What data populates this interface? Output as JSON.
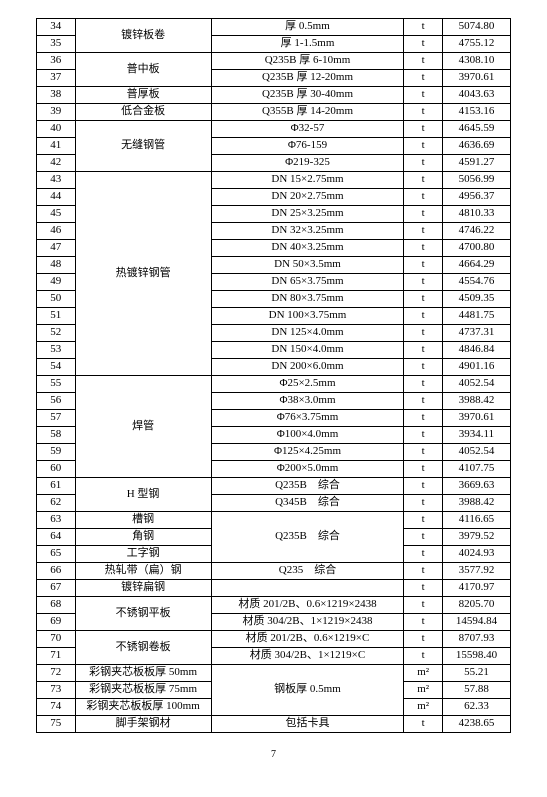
{
  "page": {
    "number": "7"
  },
  "rows": [
    {
      "seq": "34",
      "name": "镀锌板卷",
      "name_rowspan": 2,
      "spec": "厚 0.5mm",
      "unit": "t",
      "price": "5074.80"
    },
    {
      "seq": "35",
      "spec": "厚 1-1.5mm",
      "unit": "t",
      "price": "4755.12"
    },
    {
      "seq": "36",
      "name": "普中板",
      "name_rowspan": 2,
      "spec": "Q235B 厚 6-10mm",
      "unit": "t",
      "price": "4308.10"
    },
    {
      "seq": "37",
      "spec": "Q235B 厚 12-20mm",
      "unit": "t",
      "price": "3970.61"
    },
    {
      "seq": "38",
      "name": "普厚板",
      "name_rowspan": 1,
      "spec": "Q235B 厚 30-40mm",
      "unit": "t",
      "price": "4043.63"
    },
    {
      "seq": "39",
      "name": "低合金板",
      "name_rowspan": 1,
      "spec": "Q355B 厚 14-20mm",
      "unit": "t",
      "price": "4153.16"
    },
    {
      "seq": "40",
      "name": "无缝钢管",
      "name_rowspan": 3,
      "spec": "Φ32-57",
      "unit": "t",
      "price": "4645.59"
    },
    {
      "seq": "41",
      "spec": "Φ76-159",
      "unit": "t",
      "price": "4636.69"
    },
    {
      "seq": "42",
      "spec": "Φ219-325",
      "unit": "t",
      "price": "4591.27"
    },
    {
      "seq": "43",
      "name": "热镀锌钢管",
      "name_rowspan": 12,
      "spec": "DN 15×2.75mm",
      "unit": "t",
      "price": "5056.99"
    },
    {
      "seq": "44",
      "spec": "DN 20×2.75mm",
      "unit": "t",
      "price": "4956.37"
    },
    {
      "seq": "45",
      "spec": "DN 25×3.25mm",
      "unit": "t",
      "price": "4810.33"
    },
    {
      "seq": "46",
      "spec": "DN 32×3.25mm",
      "unit": "t",
      "price": "4746.22"
    },
    {
      "seq": "47",
      "spec": "DN 40×3.25mm",
      "unit": "t",
      "price": "4700.80"
    },
    {
      "seq": "48",
      "spec": "DN 50×3.5mm",
      "unit": "t",
      "price": "4664.29"
    },
    {
      "seq": "49",
      "spec": "DN 65×3.75mm",
      "unit": "t",
      "price": "4554.76"
    },
    {
      "seq": "50",
      "spec": "DN 80×3.75mm",
      "unit": "t",
      "price": "4509.35"
    },
    {
      "seq": "51",
      "spec": "DN 100×3.75mm",
      "unit": "t",
      "price": "4481.75"
    },
    {
      "seq": "52",
      "spec": "DN 125×4.0mm",
      "unit": "t",
      "price": "4737.31"
    },
    {
      "seq": "53",
      "spec": "DN 150×4.0mm",
      "unit": "t",
      "price": "4846.84"
    },
    {
      "seq": "54",
      "spec": "DN 200×6.0mm",
      "unit": "t",
      "price": "4901.16"
    },
    {
      "seq": "55",
      "name": "焊管",
      "name_rowspan": 6,
      "spec": "Φ25×2.5mm",
      "unit": "t",
      "price": "4052.54"
    },
    {
      "seq": "56",
      "spec": "Φ38×3.0mm",
      "unit": "t",
      "price": "3988.42"
    },
    {
      "seq": "57",
      "spec": "Φ76×3.75mm",
      "unit": "t",
      "price": "3970.61"
    },
    {
      "seq": "58",
      "spec": "Φ100×4.0mm",
      "unit": "t",
      "price": "3934.11"
    },
    {
      "seq": "59",
      "spec": "Φ125×4.25mm",
      "unit": "t",
      "price": "4052.54"
    },
    {
      "seq": "60",
      "spec": "Φ200×5.0mm",
      "unit": "t",
      "price": "4107.75"
    },
    {
      "seq": "61",
      "name": "H 型钢",
      "name_rowspan": 2,
      "spec": "Q235B　综合",
      "unit": "t",
      "price": "3669.63"
    },
    {
      "seq": "62",
      "spec": "Q345B　综合",
      "unit": "t",
      "price": "3988.42"
    },
    {
      "seq": "63",
      "name": "槽钢",
      "name_rowspan": 1,
      "spec": "Q235B　综合",
      "spec_rowspan": 3,
      "unit": "t",
      "price": "4116.65"
    },
    {
      "seq": "64",
      "name": "角钢",
      "name_rowspan": 1,
      "unit": "t",
      "price": "3979.52"
    },
    {
      "seq": "65",
      "name": "工字钢",
      "name_rowspan": 1,
      "unit": "t",
      "price": "4024.93"
    },
    {
      "seq": "66",
      "name": "热轧带（扁）钢",
      "name_rowspan": 1,
      "spec": "Q235　综合",
      "unit": "t",
      "price": "3577.92"
    },
    {
      "seq": "67",
      "name": "镀锌扁钢",
      "name_rowspan": 1,
      "spec": "",
      "unit": "t",
      "price": "4170.97"
    },
    {
      "seq": "68",
      "name": "不锈钢平板",
      "name_rowspan": 2,
      "spec": "材质 201/2B、0.6×1219×2438",
      "unit": "t",
      "price": "8205.70"
    },
    {
      "seq": "69",
      "spec": "材质 304/2B、1×1219×2438",
      "unit": "t",
      "price": "14594.84"
    },
    {
      "seq": "70",
      "name": "不锈钢卷板",
      "name_rowspan": 2,
      "spec": "材质 201/2B、0.6×1219×C",
      "unit": "t",
      "price": "8707.93"
    },
    {
      "seq": "71",
      "spec": "材质 304/2B、1×1219×C",
      "unit": "t",
      "price": "15598.40"
    },
    {
      "seq": "72",
      "name": "彩钢夹芯板板厚 50mm",
      "name_rowspan": 1,
      "spec": "钢板厚 0.5mm",
      "spec_rowspan": 3,
      "unit": "m²",
      "price": "55.21"
    },
    {
      "seq": "73",
      "name": "彩钢夹芯板板厚 75mm",
      "name_rowspan": 1,
      "unit": "m²",
      "price": "57.88"
    },
    {
      "seq": "74",
      "name": "彩钢夹芯板板厚 100mm",
      "name_rowspan": 1,
      "unit": "m²",
      "price": "62.33"
    },
    {
      "seq": "75",
      "name": "脚手架钢材",
      "name_rowspan": 1,
      "spec": "包括卡具",
      "unit": "t",
      "price": "4238.65"
    }
  ]
}
